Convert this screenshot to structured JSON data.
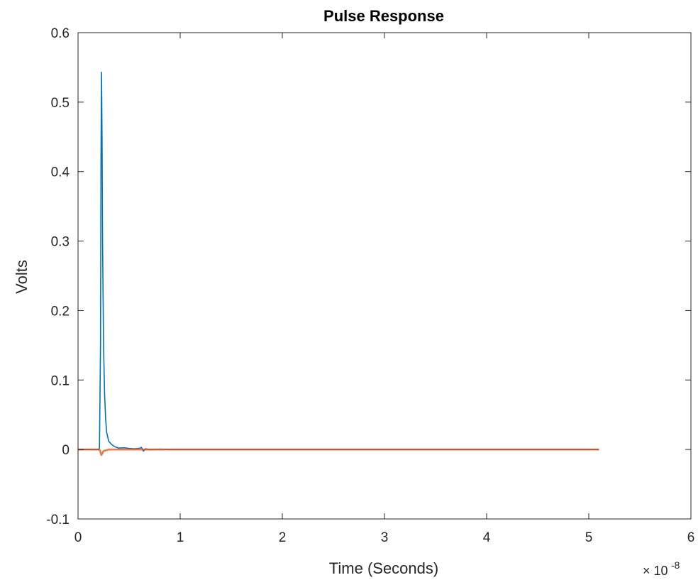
{
  "chart_data": {
    "type": "line",
    "title": "Pulse Response",
    "xlabel": "Time (Seconds)",
    "ylabel": "Volts",
    "x_exponent_label": {
      "base": "× 10",
      "exponent": "-8"
    },
    "xlim": [
      0,
      6
    ],
    "ylim": [
      -0.1,
      0.6
    ],
    "xticks": [
      "0",
      "1",
      "2",
      "3",
      "4",
      "5",
      "6"
    ],
    "yticks": [
      "-0.1",
      "0",
      "0.1",
      "0.2",
      "0.3",
      "0.4",
      "0.5",
      "0.6"
    ],
    "xtick_values": [
      0,
      1,
      2,
      3,
      4,
      5,
      6
    ],
    "ytick_values": [
      -0.1,
      0,
      0.1,
      0.2,
      0.3,
      0.4,
      0.5,
      0.6
    ],
    "grid": false,
    "box": true,
    "series": [
      {
        "color": "#0072BD",
        "x": [
          0,
          0.2,
          0.21,
          0.22,
          0.225,
          0.23,
          0.235,
          0.24,
          0.25,
          0.26,
          0.27,
          0.28,
          0.3,
          0.33,
          0.36,
          0.4,
          0.45,
          0.5,
          0.55,
          0.6,
          0.62,
          0.63,
          0.64,
          0.66,
          0.7,
          0.8,
          0.9,
          1.0,
          5.1
        ],
        "y": [
          0,
          0,
          0.002,
          0.15,
          0.42,
          0.543,
          0.45,
          0.3,
          0.15,
          0.08,
          0.045,
          0.025,
          0.012,
          0.007,
          0.004,
          0.002,
          0.0025,
          0.0015,
          0.001,
          0.0015,
          0.003,
          0.0005,
          -0.0025,
          0.001,
          0,
          0.0005,
          0,
          0,
          0
        ]
      },
      {
        "color": "#D95319",
        "x": [
          0,
          0.2,
          0.215,
          0.22,
          0.225,
          0.23,
          0.24,
          0.25,
          0.28,
          0.3,
          0.35,
          1.0,
          5.1
        ],
        "y": [
          0,
          0,
          -0.001,
          -0.004,
          -0.007,
          -0.008,
          -0.005,
          -0.002,
          -0.001,
          0,
          0,
          0,
          0
        ]
      }
    ]
  }
}
